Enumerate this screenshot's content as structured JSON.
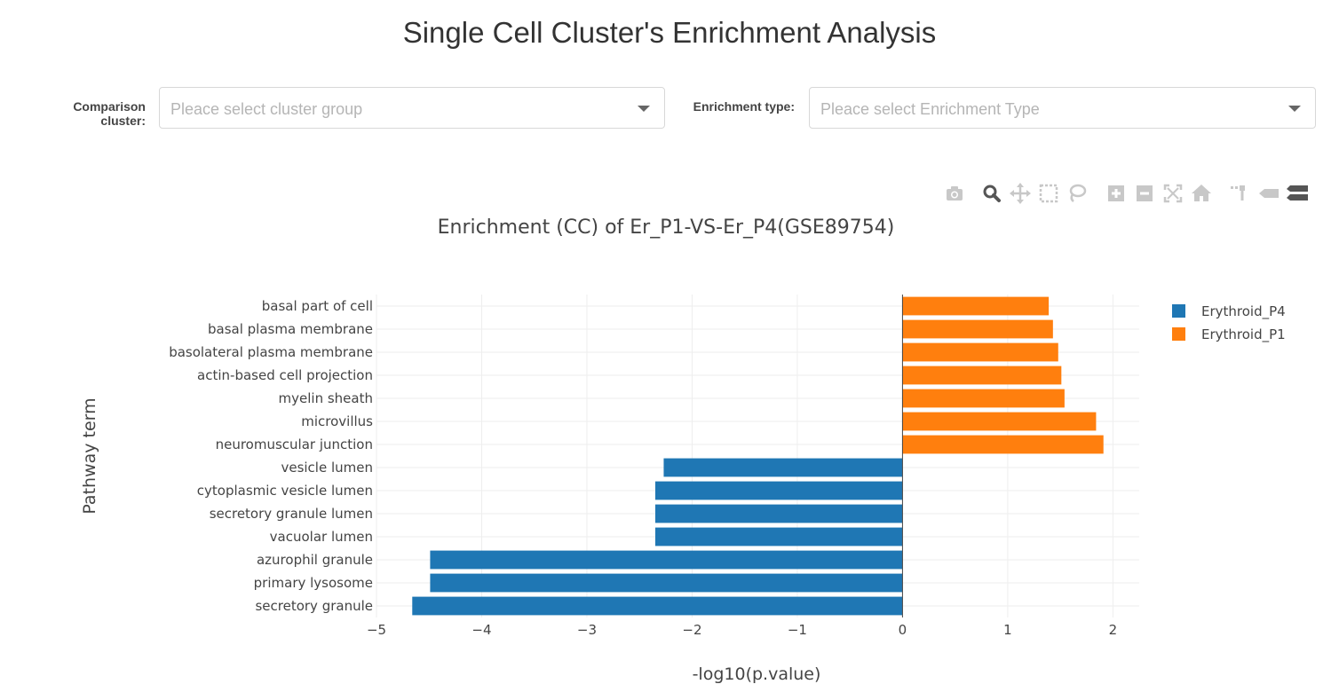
{
  "page": {
    "title": "Single Cell Cluster's Enrichment Analysis"
  },
  "form": {
    "comparison_label_line1": "Comparison",
    "comparison_label_line2": "cluster:",
    "comparison_placeholder": "Pleace select cluster group",
    "enrichment_label": "Enrichment type:",
    "enrichment_placeholder": "Pleace select Enrichment Type"
  },
  "modebar": {
    "icons": [
      "camera-icon",
      "zoom-icon",
      "pan-icon",
      "box-select-icon",
      "lasso-select-icon",
      "zoom-in-icon",
      "zoom-out-icon",
      "autoscale-icon",
      "reset-axes-icon",
      "spike-lines-icon",
      "hover-closest-icon",
      "hover-compare-icon"
    ],
    "active": "zoom-icon"
  },
  "chart_data": {
    "type": "bar",
    "orientation": "horizontal",
    "title": "Enrichment (CC) of Er_P1-VS-Er_P4(GSE89754)",
    "xlabel": "-log10(p.value)",
    "ylabel": "Pathway term",
    "xlim": [
      -5,
      2.25
    ],
    "xticks": [
      -5,
      -4,
      -3,
      -2,
      -1,
      0,
      1,
      2
    ],
    "xtick_labels": [
      "−5",
      "−4",
      "−3",
      "−2",
      "−1",
      "0",
      "1",
      "2"
    ],
    "grid": true,
    "legend_position": "top-right",
    "categories": [
      "basal part of cell",
      "basal plasma membrane",
      "basolateral plasma membrane",
      "actin-based cell projection",
      "myelin sheath",
      "microvillus",
      "neuromuscular junction",
      "vesicle lumen",
      "cytoplasmic vesicle lumen",
      "secretory granule lumen",
      "vacuolar lumen",
      "azurophil granule",
      "primary lysosome",
      "secretory granule"
    ],
    "series": [
      {
        "name": "Erythroid_P4",
        "color": "#1f77b4",
        "values": [
          null,
          null,
          null,
          null,
          null,
          null,
          null,
          -2.27,
          -2.35,
          -2.35,
          -2.35,
          -4.49,
          -4.49,
          -4.66
        ]
      },
      {
        "name": "Erythroid_P1",
        "color": "#ff7f0e",
        "values": [
          1.39,
          1.43,
          1.48,
          1.51,
          1.54,
          1.84,
          1.91,
          null,
          null,
          null,
          null,
          null,
          null,
          null
        ]
      }
    ]
  }
}
